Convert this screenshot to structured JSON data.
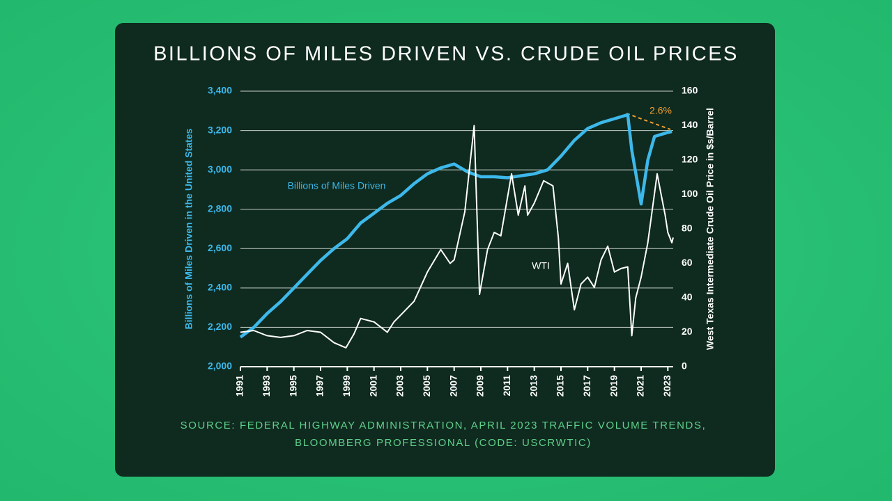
{
  "chart_data": {
    "type": "line",
    "title": "BILLIONS OF MILES DRIVEN VS. CRUDE OIL PRICES",
    "ylabel": "Billions of Miles Driven in the United States",
    "y2label": "West Texas Intermediate Crude Oil Price in $s/Barrel",
    "source": [
      "SOURCE: FEDERAL HIGHWAY ADMINISTRATION, APRIL 2023 TRAFFIC VOLUME TRENDS,",
      "BLOOMBERG PROFESSIONAL (CODE: USCRWTIC)"
    ],
    "annotations": [
      "Billions of Miles Driven",
      "WTI",
      "2.6%"
    ],
    "xlim": [
      1991,
      2023.4
    ],
    "xticks": [
      1991,
      1993,
      1995,
      1997,
      1999,
      2001,
      2003,
      2005,
      2007,
      2009,
      2011,
      2013,
      2015,
      2017,
      2019,
      2021,
      2023
    ],
    "ylim": [
      2000,
      3400
    ],
    "yticks": [
      {
        "value": 2000,
        "label": "2,000"
      },
      {
        "value": 2200,
        "label": "2,200"
      },
      {
        "value": 2400,
        "label": "2,400"
      },
      {
        "value": 2600,
        "label": "2,600"
      },
      {
        "value": 2800,
        "label": "2,800"
      },
      {
        "value": 3000,
        "label": "3,000"
      },
      {
        "value": 3200,
        "label": "3,200"
      },
      {
        "value": 3400,
        "label": "3,400"
      }
    ],
    "y2lim": [
      0,
      160
    ],
    "y2ticks": [
      0,
      20,
      40,
      60,
      80,
      100,
      120,
      140,
      160
    ],
    "grid": true,
    "series": [
      {
        "name": "Billions of Miles Driven",
        "color": "#3db8ea",
        "x": [
          1991,
          1992,
          1993,
          1994,
          1995,
          1996,
          1997,
          1998,
          1999,
          2000,
          2001,
          2002,
          2003,
          2004,
          2005,
          2006,
          2007,
          2008,
          2009,
          2010,
          2011,
          2012,
          2013,
          2014,
          2015,
          2016,
          2017,
          2018,
          2019,
          2020,
          2020.3,
          2021,
          2021.5,
          2022,
          2022.5,
          2023,
          2023.3
        ],
        "values": [
          2150,
          2200,
          2270,
          2330,
          2400,
          2470,
          2540,
          2600,
          2650,
          2730,
          2780,
          2830,
          2870,
          2930,
          2980,
          3010,
          3030,
          2990,
          2965,
          2965,
          2960,
          2970,
          2980,
          3000,
          3070,
          3150,
          3210,
          3240,
          3260,
          3280,
          3100,
          2827,
          3050,
          3170,
          3180,
          3190,
          3195
        ]
      },
      {
        "name": "WTI",
        "color": "#ffffff",
        "axis": "y2",
        "x": [
          1991,
          1992,
          1993,
          1994,
          1995,
          1996,
          1997,
          1998,
          1998.9,
          1999.5,
          2000,
          2001,
          2002,
          2002.5,
          2003,
          2004,
          2005,
          2006,
          2006.7,
          2007,
          2007.8,
          2008.5,
          2008.9,
          2009.5,
          2010,
          2010.5,
          2011.3,
          2011.8,
          2012.3,
          2012.5,
          2013,
          2013.7,
          2014.4,
          2014.8,
          2015,
          2015.5,
          2016,
          2016.5,
          2017,
          2017.5,
          2018,
          2018.5,
          2019,
          2019.5,
          2020,
          2020.3,
          2020.6,
          2021,
          2021.5,
          2022.2,
          2022.5,
          2022.8,
          2023,
          2023.3,
          2023.4
        ],
        "values": [
          20,
          21,
          18,
          17,
          18,
          21,
          20,
          14,
          11,
          19,
          28,
          26,
          20,
          26,
          30,
          38,
          55,
          68,
          60,
          62,
          90,
          140,
          42,
          68,
          78,
          76,
          112,
          88,
          105,
          88,
          95,
          108,
          105,
          75,
          48,
          60,
          33,
          48,
          52,
          46,
          62,
          70,
          55,
          57,
          58,
          18,
          40,
          52,
          72,
          112,
          100,
          88,
          78,
          72,
          75
        ]
      }
    ]
  }
}
